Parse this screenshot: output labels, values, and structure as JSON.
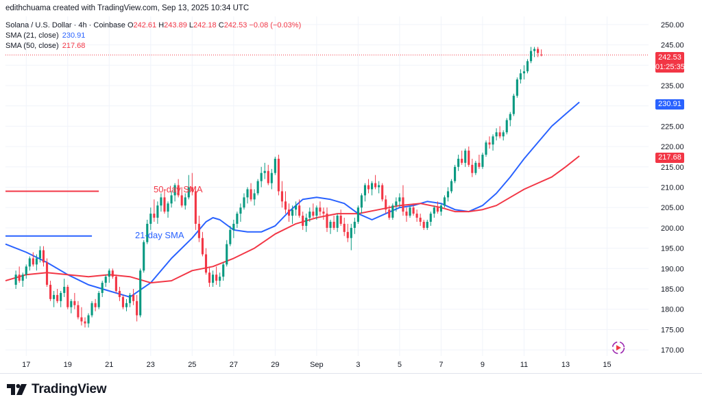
{
  "header": {
    "attribution": "edithchuama created with TradingView.com, Sep 13, 2025 10:34 UTC"
  },
  "legend": {
    "symbol": "Solana / U.S. Dollar · 4h · Coinbase",
    "o_label": "O",
    "o_value": "242.61",
    "h_label": "H",
    "h_value": "243.89",
    "l_label": "L",
    "l_value": "242.18",
    "c_label": "C",
    "c_value": "242.53",
    "change": "−0.08 (−0.03%)",
    "sma21_label": "SMA (21, close)",
    "sma21_value": "230.91",
    "sma50_label": "SMA (50, close)",
    "sma50_value": "217.68"
  },
  "price_tags": {
    "last_price": "242.53",
    "countdown": "01:25:35",
    "sma21": "230.91",
    "sma50": "217.68"
  },
  "annotations": {
    "sma50_text": "50-day SMA",
    "sma21_text": "21-day SMA"
  },
  "footer": {
    "brand": "TradingView"
  },
  "colors": {
    "up": "#089981",
    "down": "#f23645",
    "sma21": "#2962ff",
    "sma50": "#f23645",
    "axis_text": "#131722",
    "grid": "#f0f3fa"
  },
  "chart_data": {
    "type": "candlestick",
    "title": "Solana / U.S. Dollar · 4h · Coinbase",
    "y_ticks": [
      "170.00",
      "175.00",
      "180.00",
      "185.00",
      "190.00",
      "195.00",
      "200.00",
      "205.00",
      "210.00",
      "215.00",
      "220.00",
      "225.00",
      "230.00",
      "235.00",
      "240.00",
      "245.00",
      "250.00"
    ],
    "y_range": [
      168.5,
      252
    ],
    "x_ticks": [
      "17",
      "19",
      "21",
      "23",
      "25",
      "27",
      "29",
      "Sep",
      "3",
      "5",
      "7",
      "9",
      "11",
      "13",
      "15"
    ],
    "x_tick_index": [
      3,
      15,
      27,
      39,
      51,
      63,
      75,
      87,
      99,
      111,
      123,
      135,
      147,
      159,
      171
    ],
    "x_range": [
      -3,
      183
    ],
    "ohlc": [
      [
        186.0,
        189.5,
        185.0,
        188.5
      ],
      [
        188.5,
        190.5,
        186.5,
        187.0
      ],
      [
        187.0,
        189.0,
        185.5,
        188.5
      ],
      [
        188.5,
        191.0,
        187.5,
        190.5
      ],
      [
        190.5,
        193.0,
        189.5,
        192.5
      ],
      [
        192.5,
        194.0,
        190.5,
        191.0
      ],
      [
        191.0,
        193.5,
        189.5,
        192.5
      ],
      [
        192.5,
        195.5,
        191.5,
        194.5
      ],
      [
        194.5,
        195.5,
        190.5,
        191.5
      ],
      [
        191.5,
        192.5,
        185.5,
        186.0
      ],
      [
        186.0,
        187.0,
        182.0,
        182.5
      ],
      [
        182.5,
        184.5,
        180.5,
        183.5
      ],
      [
        183.5,
        185.0,
        181.5,
        182.0
      ],
      [
        182.0,
        184.5,
        180.5,
        184.0
      ],
      [
        184.0,
        187.5,
        183.0,
        185.5
      ],
      [
        185.5,
        186.0,
        180.0,
        180.5
      ],
      [
        180.5,
        182.5,
        179.0,
        182.0
      ],
      [
        182.0,
        184.0,
        180.0,
        181.0
      ],
      [
        181.0,
        182.0,
        177.5,
        178.0
      ],
      [
        178.0,
        180.5,
        176.0,
        177.0
      ],
      [
        177.0,
        178.0,
        175.5,
        176.5
      ],
      [
        176.5,
        179.0,
        175.5,
        178.5
      ],
      [
        178.5,
        182.0,
        178.0,
        181.5
      ],
      [
        181.5,
        182.5,
        179.5,
        180.5
      ],
      [
        180.5,
        184.5,
        180.0,
        184.0
      ],
      [
        184.0,
        187.0,
        183.0,
        186.5
      ],
      [
        186.5,
        188.5,
        185.5,
        188.0
      ],
      [
        188.0,
        190.0,
        186.5,
        189.5
      ],
      [
        189.5,
        190.0,
        187.5,
        188.0
      ],
      [
        188.0,
        188.5,
        184.0,
        184.5
      ],
      [
        184.5,
        185.5,
        182.0,
        183.0
      ],
      [
        183.0,
        183.5,
        180.0,
        180.5
      ],
      [
        180.5,
        182.5,
        179.5,
        181.5
      ],
      [
        181.5,
        184.0,
        180.5,
        183.5
      ],
      [
        183.5,
        185.0,
        181.0,
        182.0
      ],
      [
        182.0,
        183.5,
        177.0,
        178.5
      ],
      [
        178.5,
        190.0,
        178.0,
        189.5
      ],
      [
        189.5,
        197.0,
        189.0,
        196.5
      ],
      [
        196.5,
        202.0,
        196.0,
        201.0
      ],
      [
        201.0,
        205.0,
        199.5,
        203.5
      ],
      [
        203.5,
        207.0,
        201.5,
        202.5
      ],
      [
        202.5,
        206.5,
        201.0,
        205.5
      ],
      [
        205.5,
        208.5,
        204.0,
        207.5
      ],
      [
        207.5,
        209.5,
        203.5,
        204.0
      ],
      [
        204.0,
        206.5,
        202.5,
        206.0
      ],
      [
        206.0,
        209.0,
        205.0,
        208.0
      ],
      [
        208.0,
        211.0,
        206.5,
        210.5
      ],
      [
        210.5,
        212.0,
        207.5,
        208.0
      ],
      [
        208.0,
        210.0,
        205.0,
        205.5
      ],
      [
        205.5,
        208.5,
        204.5,
        207.5
      ],
      [
        207.5,
        213.0,
        207.0,
        210.0
      ],
      [
        210.0,
        213.5,
        208.0,
        209.0
      ],
      [
        209.0,
        210.0,
        199.5,
        201.0
      ],
      [
        201.0,
        203.0,
        196.5,
        197.5
      ],
      [
        197.5,
        199.0,
        193.0,
        193.5
      ],
      [
        193.5,
        195.0,
        188.5,
        189.0
      ],
      [
        189.0,
        190.5,
        185.5,
        186.5
      ],
      [
        186.5,
        189.5,
        185.5,
        188.5
      ],
      [
        188.5,
        190.5,
        186.0,
        187.0
      ],
      [
        187.0,
        189.0,
        185.5,
        188.0
      ],
      [
        188.0,
        191.5,
        187.0,
        191.0
      ],
      [
        191.0,
        197.0,
        190.5,
        196.0
      ],
      [
        196.0,
        200.5,
        195.5,
        199.5
      ],
      [
        199.5,
        202.0,
        197.5,
        201.0
      ],
      [
        201.0,
        204.0,
        200.0,
        203.5
      ],
      [
        203.5,
        206.0,
        201.5,
        205.0
      ],
      [
        205.0,
        208.5,
        204.5,
        207.5
      ],
      [
        207.5,
        210.0,
        206.0,
        209.5
      ],
      [
        209.5,
        211.0,
        206.5,
        207.0
      ],
      [
        207.0,
        209.5,
        205.5,
        208.5
      ],
      [
        208.5,
        212.0,
        208.0,
        211.5
      ],
      [
        211.5,
        215.0,
        210.0,
        213.5
      ],
      [
        213.5,
        216.0,
        212.0,
        214.0
      ],
      [
        214.0,
        215.5,
        210.5,
        211.0
      ],
      [
        211.0,
        214.5,
        209.5,
        213.5
      ],
      [
        213.5,
        217.5,
        213.0,
        217.0
      ],
      [
        217.0,
        218.0,
        208.0,
        209.0
      ],
      [
        209.0,
        211.5,
        205.0,
        206.5
      ],
      [
        206.5,
        209.0,
        203.5,
        204.5
      ],
      [
        204.5,
        206.0,
        201.5,
        203.0
      ],
      [
        203.0,
        205.5,
        201.0,
        204.5
      ],
      [
        204.5,
        206.5,
        203.0,
        205.5
      ],
      [
        205.5,
        207.0,
        202.5,
        203.0
      ],
      [
        203.0,
        204.0,
        199.5,
        200.5
      ],
      [
        200.5,
        203.5,
        199.0,
        202.5
      ],
      [
        202.5,
        205.0,
        201.5,
        204.0
      ],
      [
        204.0,
        206.0,
        202.5,
        203.0
      ],
      [
        203.0,
        205.5,
        202.0,
        205.0
      ],
      [
        205.0,
        206.5,
        203.0,
        204.0
      ],
      [
        204.0,
        205.0,
        202.0,
        203.5
      ],
      [
        203.5,
        205.0,
        199.0,
        200.0
      ],
      [
        200.0,
        202.0,
        198.5,
        201.5
      ],
      [
        201.5,
        203.0,
        199.5,
        200.0
      ],
      [
        200.0,
        203.5,
        199.0,
        203.0
      ],
      [
        203.0,
        204.5,
        200.5,
        201.0
      ],
      [
        201.0,
        202.5,
        198.0,
        199.0
      ],
      [
        199.0,
        201.0,
        196.5,
        197.5
      ],
      [
        197.5,
        201.0,
        194.5,
        200.0
      ],
      [
        200.0,
        202.5,
        198.5,
        201.5
      ],
      [
        201.5,
        205.5,
        201.0,
        205.0
      ],
      [
        205.0,
        208.5,
        203.5,
        208.0
      ],
      [
        208.0,
        211.0,
        206.5,
        210.5
      ],
      [
        210.5,
        212.0,
        208.5,
        209.5
      ],
      [
        209.5,
        211.5,
        208.0,
        211.0
      ],
      [
        211.0,
        213.0,
        209.5,
        210.0
      ],
      [
        210.0,
        211.5,
        208.5,
        210.5
      ],
      [
        210.5,
        211.0,
        206.5,
        207.0
      ],
      [
        207.0,
        208.0,
        203.5,
        204.5
      ],
      [
        204.5,
        205.5,
        202.0,
        202.5
      ],
      [
        202.5,
        206.0,
        202.0,
        205.5
      ],
      [
        205.5,
        207.5,
        204.0,
        206.5
      ],
      [
        206.5,
        208.5,
        205.0,
        207.5
      ],
      [
        207.5,
        210.5,
        203.0,
        204.0
      ],
      [
        204.0,
        205.0,
        201.5,
        203.0
      ],
      [
        203.0,
        205.5,
        202.5,
        205.0
      ],
      [
        205.0,
        206.0,
        203.0,
        203.5
      ],
      [
        203.5,
        204.5,
        201.5,
        202.5
      ],
      [
        202.5,
        203.5,
        200.5,
        201.5
      ],
      [
        201.5,
        202.0,
        199.5,
        200.0
      ],
      [
        200.0,
        202.0,
        199.5,
        201.5
      ],
      [
        201.5,
        204.0,
        200.5,
        203.5
      ],
      [
        203.5,
        205.5,
        202.5,
        205.0
      ],
      [
        205.0,
        206.5,
        203.5,
        204.0
      ],
      [
        204.0,
        206.0,
        203.0,
        205.5
      ],
      [
        205.5,
        208.0,
        205.0,
        207.5
      ],
      [
        207.5,
        210.0,
        206.5,
        209.0
      ],
      [
        209.0,
        212.0,
        208.5,
        211.5
      ],
      [
        211.5,
        215.5,
        211.0,
        215.0
      ],
      [
        215.0,
        218.0,
        214.0,
        217.0
      ],
      [
        217.0,
        219.0,
        215.5,
        216.0
      ],
      [
        216.0,
        219.5,
        215.0,
        219.0
      ],
      [
        219.0,
        220.0,
        215.0,
        215.5
      ],
      [
        215.5,
        217.0,
        212.5,
        213.5
      ],
      [
        213.5,
        216.5,
        213.0,
        216.0
      ],
      [
        216.0,
        218.0,
        214.5,
        215.0
      ],
      [
        215.0,
        218.5,
        214.5,
        218.0
      ],
      [
        218.0,
        221.5,
        217.5,
        221.0
      ],
      [
        221.0,
        222.5,
        219.5,
        220.5
      ],
      [
        220.5,
        223.0,
        219.0,
        222.5
      ],
      [
        222.5,
        224.5,
        221.5,
        223.5
      ],
      [
        223.5,
        225.0,
        222.0,
        222.5
      ],
      [
        222.5,
        224.0,
        221.5,
        223.5
      ],
      [
        223.5,
        227.0,
        223.0,
        226.5
      ],
      [
        226.5,
        228.5,
        225.0,
        228.0
      ],
      [
        228.0,
        233.0,
        227.5,
        232.5
      ],
      [
        232.5,
        237.0,
        232.0,
        236.5
      ],
      [
        236.5,
        239.0,
        235.5,
        238.0
      ],
      [
        238.0,
        240.0,
        236.5,
        238.5
      ],
      [
        238.5,
        241.5,
        238.0,
        241.0
      ],
      [
        241.0,
        244.5,
        240.5,
        243.5
      ],
      [
        243.5,
        244.5,
        242.0,
        244.0
      ],
      [
        244.0,
        244.5,
        242.0,
        243.0
      ],
      [
        242.61,
        243.89,
        242.18,
        242.53
      ]
    ],
    "series": [
      {
        "name": "SMA (21, close)",
        "points": [
          [
            -3,
            196.0
          ],
          [
            3,
            194.0
          ],
          [
            9,
            191.5
          ],
          [
            15,
            188.5
          ],
          [
            21,
            186.0
          ],
          [
            27,
            184.5
          ],
          [
            33,
            183.0
          ],
          [
            39,
            186.5
          ],
          [
            45,
            192.5
          ],
          [
            51,
            197.5
          ],
          [
            55,
            201.5
          ],
          [
            57,
            202.5
          ],
          [
            59,
            202.0
          ],
          [
            63,
            199.5
          ],
          [
            67,
            199.0
          ],
          [
            71,
            199.0
          ],
          [
            75,
            200.5
          ],
          [
            79,
            204.0
          ],
          [
            83,
            207.0
          ],
          [
            87,
            207.5
          ],
          [
            91,
            207.0
          ],
          [
            95,
            206.0
          ],
          [
            99,
            203.5
          ],
          [
            103,
            202.0
          ],
          [
            107,
            203.5
          ],
          [
            111,
            205.0
          ],
          [
            115,
            205.5
          ],
          [
            119,
            206.5
          ],
          [
            123,
            206.0
          ],
          [
            127,
            204.5
          ],
          [
            131,
            204.0
          ],
          [
            135,
            205.5
          ],
          [
            139,
            208.5
          ],
          [
            143,
            212.5
          ],
          [
            147,
            217.0
          ],
          [
            151,
            221.0
          ],
          [
            155,
            225.0
          ],
          [
            159,
            228.0
          ],
          [
            163,
            230.91
          ]
        ]
      },
      {
        "name": "SMA (50, close)",
        "points": [
          [
            -3,
            187.0
          ],
          [
            3,
            188.5
          ],
          [
            9,
            189.0
          ],
          [
            15,
            188.5
          ],
          [
            21,
            188.0
          ],
          [
            27,
            188.5
          ],
          [
            33,
            188.0
          ],
          [
            39,
            186.5
          ],
          [
            45,
            187.0
          ],
          [
            51,
            189.5
          ],
          [
            57,
            190.5
          ],
          [
            63,
            192.5
          ],
          [
            69,
            195.0
          ],
          [
            75,
            198.5
          ],
          [
            81,
            201.0
          ],
          [
            87,
            202.5
          ],
          [
            93,
            203.5
          ],
          [
            99,
            203.5
          ],
          [
            105,
            204.5
          ],
          [
            111,
            205.5
          ],
          [
            117,
            206.0
          ],
          [
            123,
            205.0
          ],
          [
            127,
            204.0
          ],
          [
            131,
            204.0
          ],
          [
            135,
            204.5
          ],
          [
            139,
            205.5
          ],
          [
            143,
            207.5
          ],
          [
            147,
            209.5
          ],
          [
            151,
            211.0
          ],
          [
            155,
            212.5
          ],
          [
            159,
            215.0
          ],
          [
            163,
            217.68
          ]
        ]
      }
    ],
    "legend_lines": [
      {
        "color": "#f23645",
        "y": 209.0,
        "x": [
          -3,
          24
        ]
      },
      {
        "color": "#2962ff",
        "y": 198.0,
        "x": [
          -3,
          22
        ]
      }
    ]
  }
}
